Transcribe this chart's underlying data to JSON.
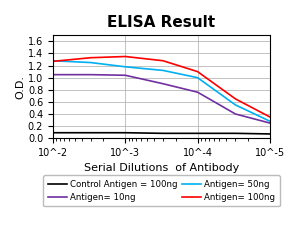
{
  "title": "ELISA Result",
  "ylabel": "O.D.",
  "xlabel": "Serial Dilutions  of Antibody",
  "x_values": [
    0.01,
    0.003,
    0.001,
    0.0003,
    0.0001,
    3e-05,
    1e-05
  ],
  "lines": [
    {
      "label": "Control Antigen = 100ng",
      "color": "#000000",
      "y": [
        0.09,
        0.09,
        0.09,
        0.08,
        0.08,
        0.08,
        0.07
      ]
    },
    {
      "label": "Antigen= 10ng",
      "color": "#7030a0",
      "y": [
        1.05,
        1.05,
        1.04,
        0.9,
        0.76,
        0.4,
        0.25
      ]
    },
    {
      "label": "Antigen= 50ng",
      "color": "#00b0f0",
      "y": [
        1.28,
        1.25,
        1.18,
        1.12,
        1.0,
        0.55,
        0.28
      ]
    },
    {
      "label": "Antigen= 100ng",
      "color": "#ff0000",
      "y": [
        1.27,
        1.33,
        1.35,
        1.28,
        1.1,
        0.65,
        0.35
      ]
    }
  ],
  "ylim": [
    0,
    1.7
  ],
  "yticks": [
    0,
    0.2,
    0.4,
    0.6,
    0.8,
    1.0,
    1.2,
    1.4,
    1.6
  ],
  "xticks": [
    0.01,
    0.001,
    0.0001,
    1e-05
  ],
  "xtick_labels": [
    "10^-2",
    "10^-3",
    "10^-4",
    "10^-5"
  ],
  "background_color": "#ffffff",
  "grid_color": "#aaaaaa",
  "title_fontsize": 11,
  "label_fontsize": 8,
  "legend_fontsize": 6.2,
  "tick_fontsize": 7
}
